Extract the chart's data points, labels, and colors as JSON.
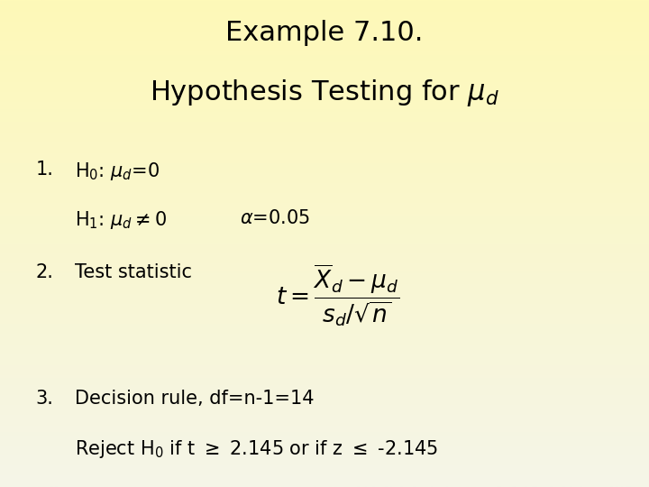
{
  "title_line1": "Example 7.10.",
  "title_line2": "Hypothesis Testing for $\\mu_d$",
  "bg_color_top": "#FEF9B8",
  "bg_color_bottom": "#F5F5E8",
  "item1_h0": "H$_0$: $\\mu_d$=0",
  "item1_h1": "H$_1$: $\\mu_d$$\\neq$0",
  "item1_alpha": "$\\alpha$=0.05",
  "item2_label": "Test statistic",
  "item3_line1": "Decision rule, df=n-1=14",
  "item3_line2": "Reject H$_0$ if t $\\geq$ 2.145 or if z $\\leq$ -2.145",
  "title_fontsize": 22,
  "body_fontsize": 15,
  "formula_fontsize": 16
}
